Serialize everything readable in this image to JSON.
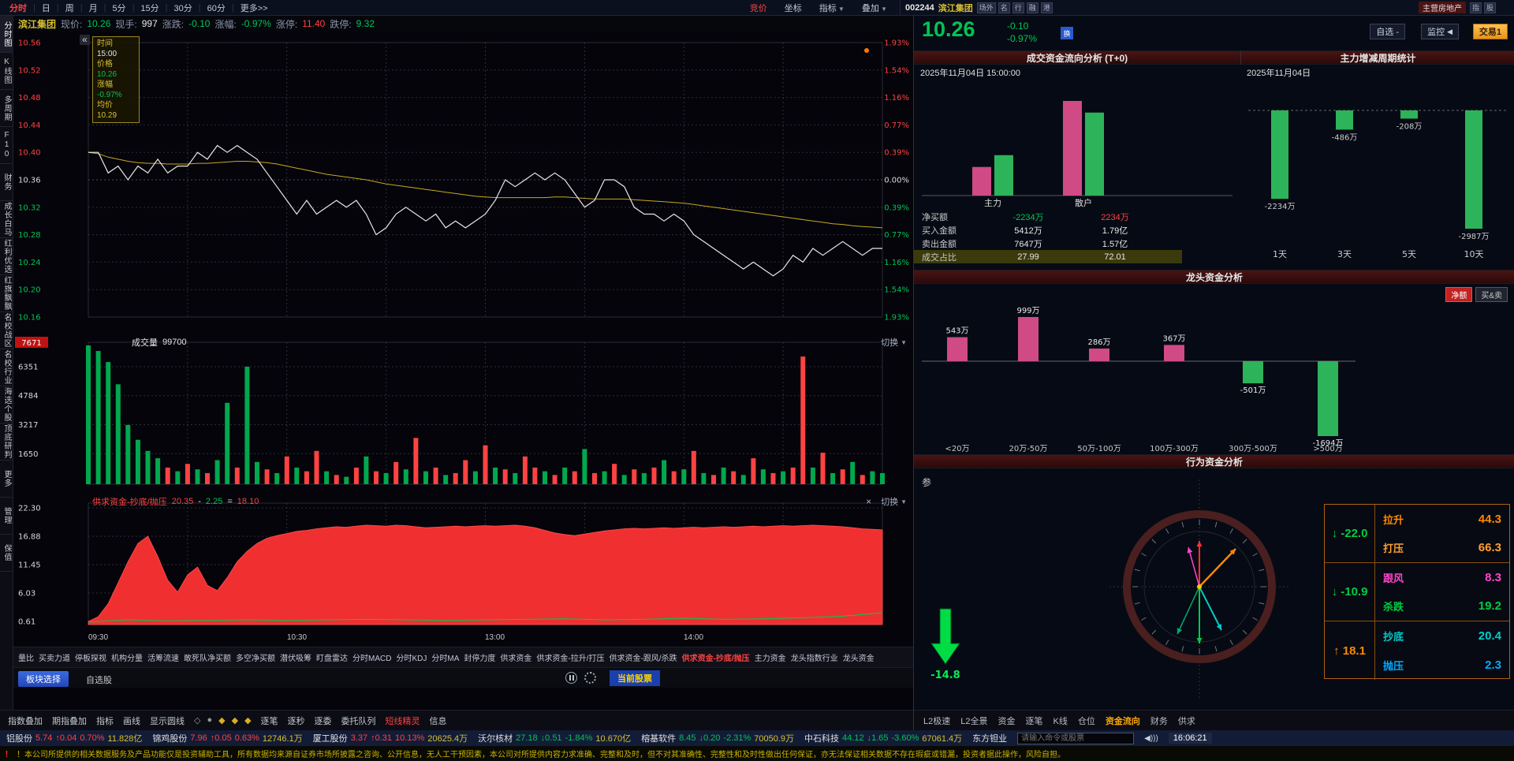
{
  "colors": {
    "up": "#ff4242",
    "down": "#00c455",
    "neutral": "#dddddd",
    "yellow": "#d8c030",
    "avg_line": "#c8a820",
    "buy_bar": "#d04a86",
    "sell_bar": "#2db35a",
    "area_red": "#f03030",
    "accent_orange": "#ff8800"
  },
  "top_bar": {
    "periods": [
      "分时",
      "日",
      "周",
      "月",
      "5分",
      "15分",
      "30分",
      "60分",
      "更多>>"
    ],
    "active_period": "分时",
    "tools": [
      "竞价",
      "坐标",
      "指标",
      "叠加"
    ],
    "hot_tool": "竞价"
  },
  "sidebar": {
    "items": [
      "分时图",
      "K线图",
      "多周期",
      "F10",
      "财务",
      "成长白马",
      "红利优选",
      "红旗飘飘",
      "名校战区",
      "名校行业",
      "海选个股",
      "顶底研判",
      "更多",
      "管理",
      "保值"
    ]
  },
  "stock_info": {
    "name": "滨江集团",
    "price_label": "现价:",
    "price": "10.26",
    "hands_label": "现手:",
    "hands": "997",
    "change_label": "涨跌:",
    "change": "-0.10",
    "pct_label": "涨幅:",
    "pct": "-0.97%",
    "limit_up_label": "涨停:",
    "limit_up": "11.40",
    "limit_down_label": "跌停:",
    "limit_down": "9.32"
  },
  "tooltip": {
    "time_label": "时间",
    "time": "15:00",
    "price_label": "价格",
    "price": "10.26",
    "pct_label": "涨幅",
    "pct": "-0.97%",
    "avg_label": "均价",
    "avg": "10.29"
  },
  "volume_pane": {
    "title": "成交量",
    "value": "99700",
    "switch_label": "切换"
  },
  "pane3": {
    "title": "供求资金-抄底/抛压",
    "v1": "20.35",
    "minus": "-",
    "v2": "2.25",
    "equals": "=",
    "result": "18.10",
    "switch_label": "切换"
  },
  "indicator_tabs": {
    "items": [
      "量比",
      "买卖力道",
      "停板探视",
      "机构分量",
      "活筹流速",
      "敢死队净买额",
      "多空净买额",
      "潜伏吸筹",
      "盯盘雷达",
      "分时MACD",
      "分时KDJ",
      "分时MA",
      "封停力度",
      "供求资金",
      "供求资金-拉升/打压",
      "供求资金-跟风/杀跌",
      "供求资金-抄底/抛压",
      "主力资金",
      "龙头指数行业",
      "龙头资金"
    ],
    "active": "供求资金-抄底/抛压"
  },
  "subtabs": {
    "block_select": "板块选择",
    "watchlist": "自选股",
    "current_stock": "当前股票"
  },
  "toolbar": {
    "left_items": [
      "指数叠加",
      "期指叠加",
      "指标",
      "画线",
      "显示圆线"
    ],
    "right_items": [
      "逐笔",
      "逐秒",
      "逐委",
      "委托队列",
      "短线精灵",
      "信息"
    ],
    "active_right": "短线精灵"
  },
  "right_panel": {
    "header": {
      "code": "002244",
      "name": "滨江集团",
      "badges": [
        "场外",
        "名",
        "行",
        "融",
        "港"
      ],
      "business": "主营房地产",
      "mini_tabs": [
        "指",
        "股"
      ]
    },
    "price_block": {
      "price": "10.26",
      "change": "-0.10",
      "pct": "-0.97%",
      "swap_icon_label": "换",
      "buttons": {
        "watch": "自选 -",
        "monitor": "监控",
        "trade": "交易1"
      }
    },
    "sections": {
      "flow": "成交资金流向分析 (T+0)",
      "period": "主力增减周期统计",
      "longtou": "龙头资金分析",
      "behavior": "行为资金分析"
    },
    "flow_date": "2025年11月04日 15:00:00",
    "period_date": "2025年11月04日",
    "longtou_tabs": [
      {
        "label": "净额",
        "active": true
      },
      {
        "label": "买&卖",
        "active": false
      }
    ],
    "bottom_tabs": {
      "items": [
        "L2极速",
        "L2全景",
        "资金",
        "逐笔",
        "K线",
        "仓位",
        "资金流向",
        "财务",
        "供求"
      ],
      "active": "资金流向"
    }
  },
  "ticker": {
    "stocks": [
      {
        "name": "铝股份",
        "price": "5.74",
        "arrow": "↑",
        "chg": "0.04",
        "pct": "0.70%",
        "amount": "11.828亿",
        "dir": "up"
      },
      {
        "name": "锦鸡股份",
        "price": "7.96",
        "arrow": "↑",
        "chg": "0.05",
        "pct": "0.63%",
        "amount": "12746.1万",
        "dir": "up"
      },
      {
        "name": "厦工股份",
        "price": "3.37",
        "arrow": "↑",
        "chg": "0.31",
        "pct": "10.13%",
        "amount": "20625.4万",
        "dir": "up"
      },
      {
        "name": "沃尔核材",
        "price": "27.18",
        "arrow": "↓",
        "chg": "0.51",
        "pct": "-1.84%",
        "amount": "10.670亿",
        "dir": "down"
      },
      {
        "name": "榕基软件",
        "price": "8.45",
        "arrow": "↓",
        "chg": "0.20",
        "pct": "-2.31%",
        "amount": "70050.9万",
        "dir": "down"
      },
      {
        "name": "中石科技",
        "price": "44.12",
        "arrow": "↓",
        "chg": "1.65",
        "pct": "-3.60%",
        "amount": "67061.4万",
        "dir": "down"
      },
      {
        "name": "东方钽业",
        "price": "",
        "arrow": "",
        "chg": "",
        "pct": "",
        "amount": "",
        "dir": "up"
      }
    ],
    "input_placeholder": "请输入命令或股票",
    "time": "16:06:21"
  },
  "disclaimer": "！本公司所提供的相关数据服务及产品功能仅是投资辅助工具，所有数据均来源自证券市场所披露之咨询、公开信息，无人工干预因素，本公司对所提供内容力求准确、完整和及时，但不对其准确性、完整性和及时性做出任何保证，亦无法保证相关数据不存在瑕疵或错漏，投资者据此操作，风险自担。",
  "chart_data": {
    "intraday": {
      "type": "line",
      "prev_close": 10.36,
      "ylim": [
        10.16,
        10.56
      ],
      "left_ticks": [
        "10.56",
        "10.52",
        "10.48",
        "10.44",
        "10.40",
        "10.36",
        "10.32",
        "10.28",
        "10.24",
        "10.20",
        "10.16"
      ],
      "right_ticks": [
        "1.93%",
        "1.54%",
        "1.16%",
        "0.77%",
        "0.39%",
        "0.00%",
        "0.39%",
        "0.77%",
        "1.16%",
        "1.54%",
        "1.93%"
      ],
      "x_labels": [
        "09:30",
        "10:30",
        "13:00",
        "14:00"
      ],
      "price": [
        10.4,
        10.4,
        10.37,
        10.38,
        10.36,
        10.38,
        10.37,
        10.39,
        10.37,
        10.38,
        10.38,
        10.4,
        10.39,
        10.41,
        10.4,
        10.41,
        10.4,
        10.39,
        10.37,
        10.35,
        10.33,
        10.31,
        10.33,
        10.31,
        10.32,
        10.33,
        10.32,
        10.33,
        10.31,
        10.28,
        10.29,
        10.31,
        10.32,
        10.31,
        10.3,
        10.31,
        10.29,
        10.3,
        10.29,
        10.3,
        10.31,
        10.33,
        10.36,
        10.35,
        10.36,
        10.37,
        10.36,
        10.37,
        10.36,
        10.34,
        10.32,
        10.33,
        10.36,
        10.36,
        10.35,
        10.32,
        10.31,
        10.31,
        10.3,
        10.31,
        10.3,
        10.28,
        10.27,
        10.26,
        10.25,
        10.24,
        10.23,
        10.24,
        10.23,
        10.22,
        10.23,
        10.25,
        10.24,
        10.26,
        10.25,
        10.26,
        10.27,
        10.26,
        10.25,
        10.26,
        10.26
      ],
      "avg": [
        10.4,
        10.398,
        10.393,
        10.39,
        10.387,
        10.385,
        10.384,
        10.384,
        10.383,
        10.383,
        10.383,
        10.384,
        10.384,
        10.385,
        10.386,
        10.387,
        10.387,
        10.386,
        10.385,
        10.383,
        10.38,
        10.377,
        10.374,
        10.371,
        10.368,
        10.366,
        10.364,
        10.362,
        10.36,
        10.357,
        10.354,
        10.352,
        10.35,
        10.348,
        10.346,
        10.344,
        10.342,
        10.34,
        10.338,
        10.336,
        10.335,
        10.334,
        10.334,
        10.334,
        10.334,
        10.334,
        10.334,
        10.335,
        10.335,
        10.334,
        10.333,
        10.332,
        10.332,
        10.332,
        10.332,
        10.331,
        10.33,
        10.329,
        10.328,
        10.327,
        10.326,
        10.324,
        10.322,
        10.32,
        10.318,
        10.316,
        10.314,
        10.312,
        10.31,
        10.308,
        10.306,
        10.304,
        10.302,
        10.3,
        10.298,
        10.296,
        10.295,
        10.293,
        10.292,
        10.291,
        10.29
      ]
    },
    "volume": {
      "type": "bar",
      "max": 7671,
      "max_tick": "7671",
      "ticks": [
        6351,
        4784,
        3217,
        1650
      ],
      "values": [
        -7500,
        -7200,
        -6600,
        -5400,
        -3200,
        -2400,
        -1800,
        -1400,
        900,
        -700,
        1100,
        -800,
        600,
        -1300,
        -4400,
        900,
        -6350,
        -1200,
        800,
        -600,
        1500,
        -900,
        700,
        1800,
        -700,
        500,
        -400,
        900,
        -1500,
        700,
        -600,
        1200,
        -800,
        2500,
        -700,
        900,
        -500,
        600,
        1300,
        -700,
        2100,
        -900,
        800,
        -600,
        1500,
        900,
        -700,
        500,
        -900,
        700,
        -1900,
        600,
        -700,
        1100,
        -500,
        800,
        -600,
        900,
        -1300,
        700,
        -800,
        1800,
        -600,
        500,
        -900,
        700,
        -500,
        1400,
        -800,
        600,
        -700,
        900,
        6900,
        -900,
        1700,
        -600,
        800,
        -1200,
        500,
        -700,
        -600
      ]
    },
    "supply_demand": {
      "type": "area",
      "ticks": [
        "22.30",
        "16.88",
        "11.45",
        "6.03",
        "0.61"
      ],
      "ymax": 23.2,
      "values": [
        0.6,
        1.5,
        4.0,
        8.0,
        12.0,
        15.5,
        16.9,
        13.0,
        8.5,
        6.2,
        9.5,
        11.0,
        7.5,
        6.5,
        9.0,
        12.0,
        14.0,
        15.5,
        16.5,
        17.0,
        17.4,
        17.8,
        18.0,
        18.3,
        18.5,
        18.7,
        18.6,
        18.8,
        19.0,
        18.9,
        18.8,
        19.0,
        18.9,
        18.7,
        18.5,
        18.6,
        18.7,
        18.8,
        18.7,
        18.8,
        18.9,
        18.8,
        18.9,
        19.0,
        18.8,
        18.5,
        18.0,
        17.5,
        17.2,
        17.0,
        17.3,
        17.6,
        17.9,
        18.1,
        18.3,
        18.4,
        18.3,
        18.4,
        18.5,
        18.4,
        18.5,
        18.6,
        18.5,
        18.6,
        18.7,
        18.6,
        18.7,
        18.8,
        18.7,
        18.8,
        18.9,
        18.8,
        18.9,
        19.0,
        18.9,
        18.8,
        18.7,
        18.5,
        18.3,
        18.2,
        18.1
      ],
      "pressure_line": [
        0.5,
        0.9,
        0.7,
        0.8,
        0.9,
        0.8,
        0.9,
        1.0,
        0.9,
        0.8,
        0.9,
        1.0,
        1.1,
        0.9,
        1.0,
        1.2,
        1.0,
        1.1,
        1.3,
        1.6,
        2.25
      ]
    },
    "money_flow": {
      "type": "bar",
      "groups": [
        "主力",
        "散户"
      ],
      "series": [
        {
          "name": "买入金额",
          "color_key": "buy_bar",
          "values_wan": [
            5412,
            17900
          ]
        },
        {
          "name": "卖出金额",
          "color_key": "sell_bar",
          "values_wan": [
            7647,
            15700
          ]
        }
      ],
      "table": [
        {
          "label": "净买额",
          "main": "-2234万",
          "retail": "2234万",
          "main_color": "down",
          "retail_color": "up"
        },
        {
          "label": "买入金额",
          "main": "5412万",
          "retail": "1.79亿"
        },
        {
          "label": "卖出金额",
          "main": "7647万",
          "retail": "1.57亿"
        },
        {
          "label": "成交占比",
          "main": "27.99",
          "retail": "72.01",
          "highlight": true
        }
      ]
    },
    "period_stats": {
      "type": "bar",
      "categories": [
        "1天",
        "3天",
        "5天",
        "10天"
      ],
      "values_wan": [
        -2234,
        -486,
        -208,
        -2987
      ],
      "labels": [
        "-2234万",
        "-486万",
        "-208万",
        "-2987万"
      ]
    },
    "longtou": {
      "type": "bar",
      "categories": [
        "<20万",
        "20万-50万",
        "50万-100万",
        "100万-300万",
        "300万-500万",
        ">500万"
      ],
      "values_wan": [
        543,
        999,
        286,
        367,
        -501,
        -1694
      ],
      "labels": [
        "543万",
        "999万",
        "286万",
        "367万",
        "-501万",
        "-1694万"
      ]
    },
    "behavior_gauge": {
      "type": "gauge",
      "corner_label": "参",
      "big_arrow": {
        "value": "-14.8",
        "direction": "down"
      },
      "nets": [
        {
          "arrow": "↓",
          "value": "-22.0",
          "tone": "down"
        },
        {
          "arrow": "↓",
          "value": "-10.9",
          "tone": "down"
        },
        {
          "arrow": "↑",
          "value": "18.1",
          "tone": "up"
        }
      ],
      "metrics": [
        {
          "label": "拉升",
          "value": "44.3",
          "color": "#ff8800"
        },
        {
          "label": "打压",
          "value": "66.3",
          "color": "#ffa030"
        },
        {
          "label": "跟风",
          "value": "8.3",
          "color": "#ff44cc"
        },
        {
          "label": "杀跌",
          "value": "19.2",
          "color": "#00cc44"
        },
        {
          "label": "抄底",
          "value": "20.4",
          "color": "#00cccc"
        },
        {
          "label": "抛压",
          "value": "2.3",
          "color": "#00aaff"
        }
      ]
    }
  }
}
